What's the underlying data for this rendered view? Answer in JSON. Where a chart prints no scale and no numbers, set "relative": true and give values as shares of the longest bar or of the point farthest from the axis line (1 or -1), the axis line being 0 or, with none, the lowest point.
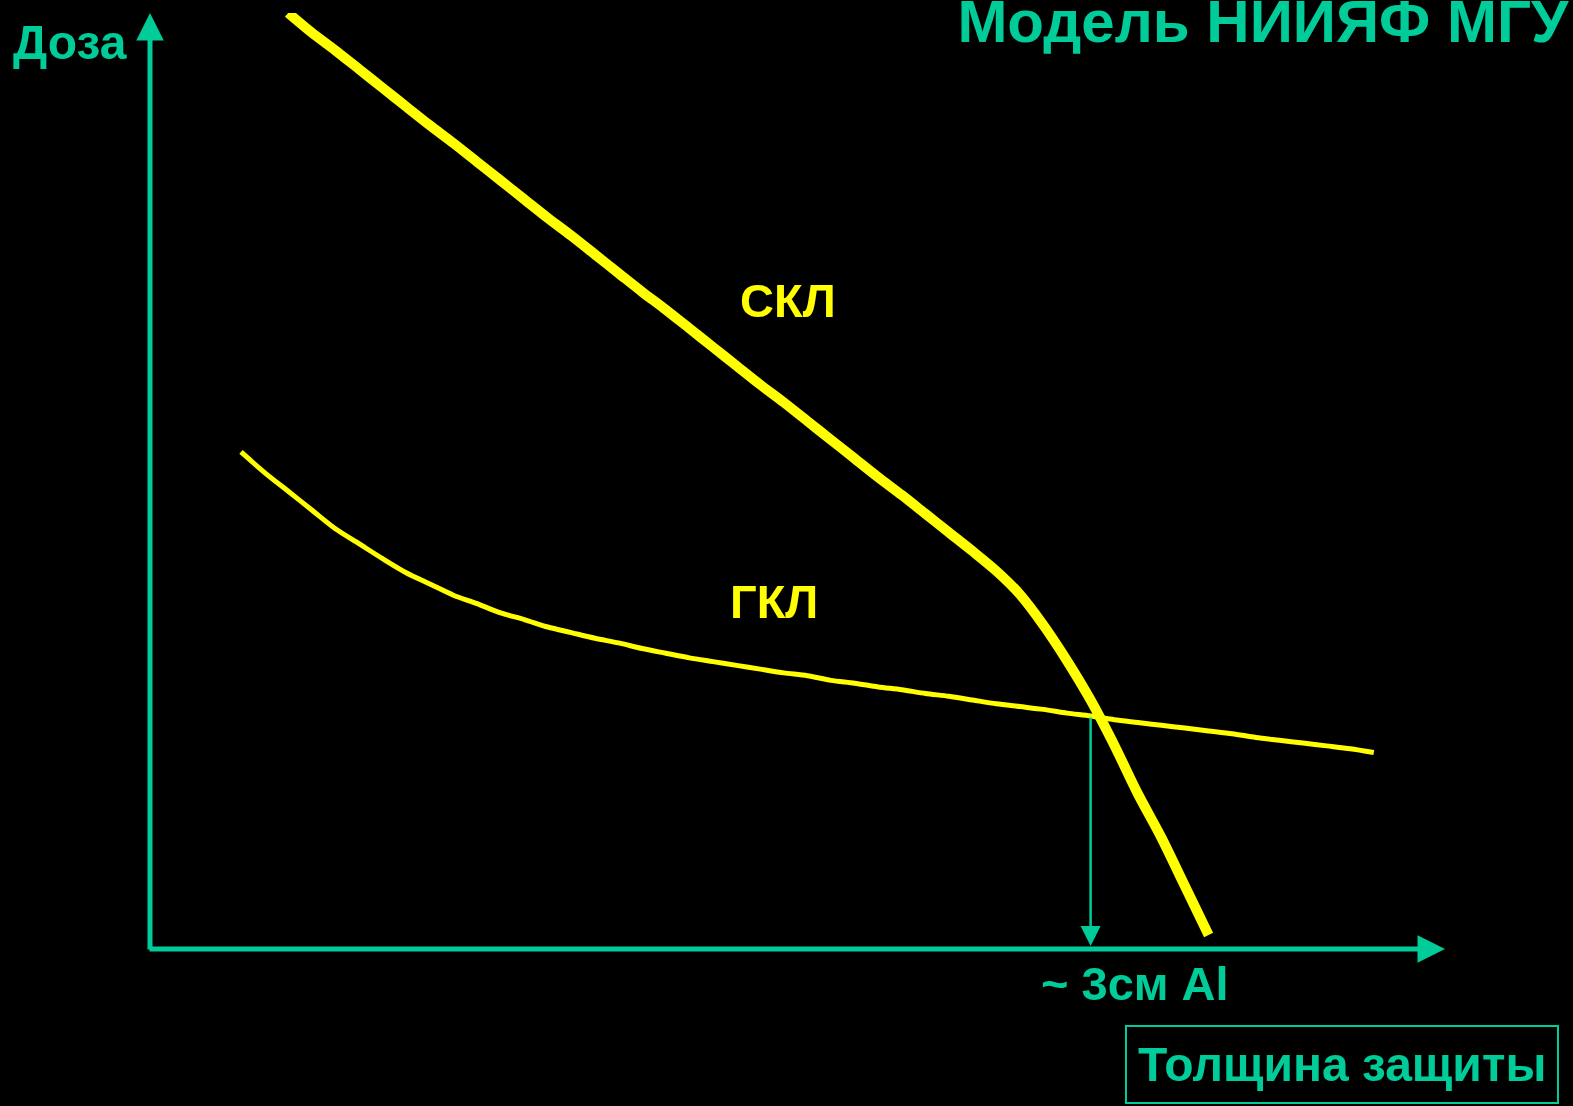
{
  "chart_data": {
    "type": "line",
    "title": "Модель НИИЯФ МГУ",
    "xlabel": "Толщина защиты",
    "ylabel": "Доза",
    "relative": true,
    "legend": false,
    "categories": [
      null,
      null,
      null,
      null,
      null,
      null,
      null,
      null,
      null,
      null,
      null,
      null,
      null,
      null,
      null,
      null,
      null,
      null,
      null,
      null,
      null,
      null,
      null,
      null,
      null,
      null,
      null,
      null,
      null,
      null,
      null,
      null,
      null,
      null,
      null,
      null,
      null,
      null,
      null,
      null,
      null,
      null,
      null,
      null,
      null,
      null,
      null,
      null,
      null
    ],
    "series": [
      {
        "name": "СКЛ",
        "color": "#ffff00",
        "values": [
          null,
          null,
          1.0,
          0.979,
          0.96,
          0.94,
          0.92,
          0.9,
          0.88,
          0.861,
          0.841,
          0.821,
          0.801,
          0.781,
          0.762,
          0.742,
          0.722,
          0.702,
          0.683,
          0.663,
          0.643,
          0.623,
          0.603,
          0.584,
          0.564,
          0.544,
          0.524,
          0.504,
          0.485,
          0.465,
          0.445,
          0.425,
          0.404,
          0.379,
          0.346,
          0.308,
          0.266,
          0.218,
          0.166,
          0.119,
          0.067,
          0.015,
          null,
          null,
          null,
          null,
          null,
          null,
          null
        ]
      },
      {
        "name": "ГКЛ",
        "color": "#ffff00",
        "values": [
          0.531,
          0.509,
          0.489,
          0.469,
          0.449,
          0.433,
          0.417,
          0.402,
          0.39,
          0.378,
          0.369,
          0.359,
          0.352,
          0.344,
          0.338,
          0.332,
          0.327,
          0.321,
          0.316,
          0.311,
          0.307,
          0.303,
          0.299,
          0.295,
          0.292,
          0.287,
          0.284,
          0.28,
          0.277,
          0.273,
          0.27,
          0.266,
          0.262,
          0.259,
          0.256,
          0.252,
          0.249,
          0.245,
          0.242,
          0.239,
          0.236,
          0.233,
          0.23,
          0.226,
          0.223,
          0.22,
          0.217,
          0.214,
          0.21
        ]
      }
    ],
    "annotations": [
      "~ 3см Al"
    ]
  }
}
